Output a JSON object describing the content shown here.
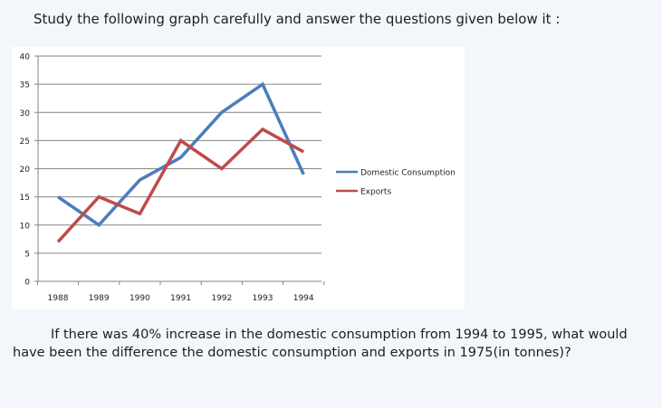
{
  "heading": "Study the following graph carefully and answer the questions given below it :",
  "question": "If there was 40% increase in the domestic consumption from 1994 to 1995, what would have been the difference the domestic consumption and exports in 1975(in tonnes)?",
  "colors": {
    "domestic": "#4a7ebb",
    "exports": "#be4b48",
    "grid": "#868686"
  },
  "chart_data": {
    "type": "line",
    "title": "",
    "xlabel": "",
    "ylabel": "",
    "categories": [
      "1988",
      "1989",
      "1990",
      "1991",
      "1992",
      "1993",
      "1994"
    ],
    "ylim": [
      0,
      40
    ],
    "yticks": [
      0,
      5,
      10,
      15,
      20,
      25,
      30,
      35,
      40
    ],
    "grid": true,
    "legend_position": "right",
    "series": [
      {
        "name": "Domestic Consumption",
        "values": [
          15,
          10,
          18,
          22,
          30,
          35,
          19
        ]
      },
      {
        "name": "Exports",
        "values": [
          7,
          15,
          12,
          25,
          20,
          27,
          23
        ]
      }
    ]
  }
}
